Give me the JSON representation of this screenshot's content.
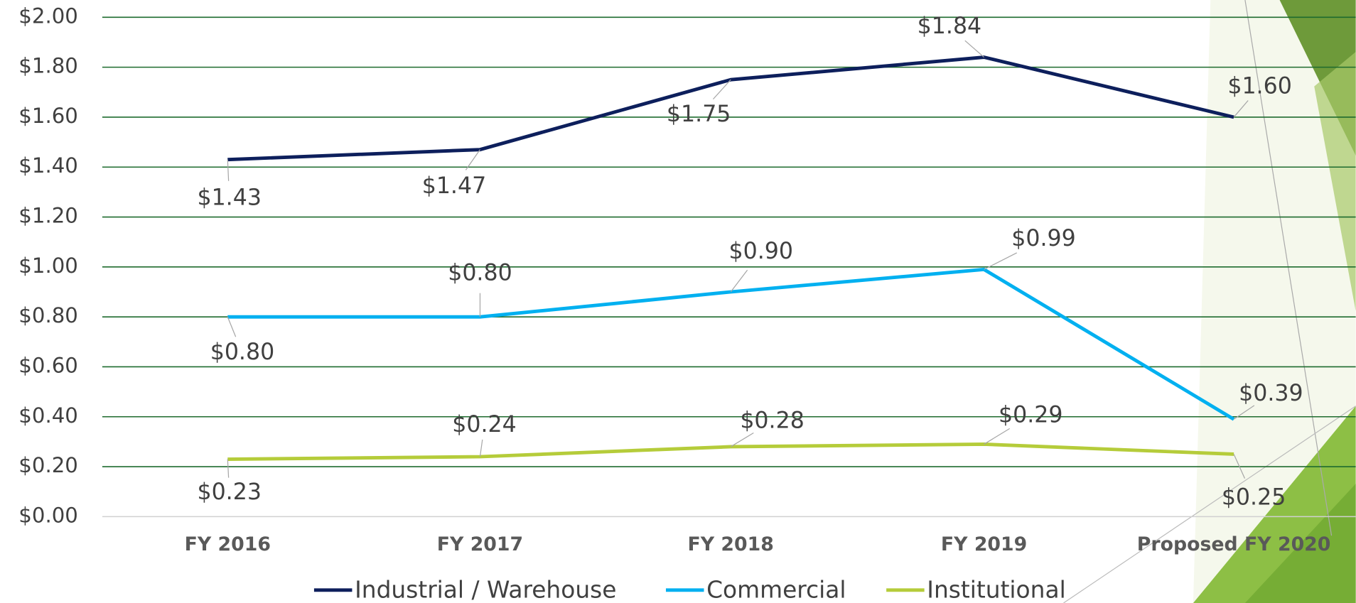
{
  "chart_data": {
    "type": "line",
    "categories": [
      "FY 2016",
      "FY 2017",
      "FY 2018",
      "FY 2019",
      "Proposed FY 2020"
    ],
    "series": [
      {
        "name": "Industrial / Warehouse",
        "color": "#0d1f5c",
        "values": [
          1.43,
          1.47,
          1.75,
          1.84,
          1.6
        ],
        "value_labels": [
          "$1.43",
          "$1.47",
          "$1.75",
          "$1.84",
          "$1.60"
        ]
      },
      {
        "name": "Commercial",
        "color": "#00b0f0",
        "values": [
          0.8,
          0.8,
          0.9,
          0.99,
          0.39
        ],
        "value_labels": [
          "$0.80",
          "$0.80",
          "$0.90",
          "$0.99",
          "$0.39"
        ]
      },
      {
        "name": "Institutional",
        "color": "#b5cc3a",
        "values": [
          0.23,
          0.24,
          0.28,
          0.29,
          0.25
        ],
        "value_labels": [
          "$0.23",
          "$0.24",
          "$0.28",
          "$0.29",
          "$0.25"
        ]
      }
    ],
    "ylim": [
      0,
      2
    ],
    "yticks": [
      {
        "value": 0,
        "label": "$0.00"
      },
      {
        "value": 0.2,
        "label": "$0.20"
      },
      {
        "value": 0.4,
        "label": "$0.40"
      },
      {
        "value": 0.6,
        "label": "$0.60"
      },
      {
        "value": 0.8,
        "label": "$0.80"
      },
      {
        "value": 1,
        "label": "$1.00"
      },
      {
        "value": 1.2,
        "label": "$1.20"
      },
      {
        "value": 1.4,
        "label": "$1.40"
      },
      {
        "value": 1.6,
        "label": "$1.60"
      },
      {
        "value": 1.8,
        "label": "$1.80"
      },
      {
        "value": 2,
        "label": "$2.00"
      }
    ],
    "grid": true,
    "grid_color": "#1e6b2e",
    "legend": "bottom"
  }
}
